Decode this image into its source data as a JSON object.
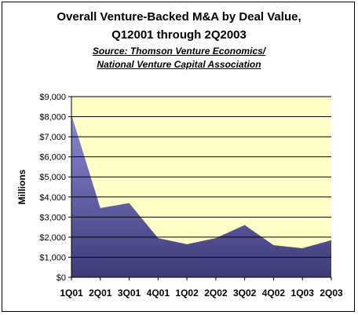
{
  "title_line1": "Overall Venture-Backed M&A by Deal Value,",
  "title_line2": "Q12001 through 2Q2003",
  "subtitle_line1": "Source: Thomson Venture Economics/",
  "subtitle_line2": "National Venture Capital Association",
  "colors": {
    "plot_background": "#ffffc6",
    "area_top": "#8b89d6",
    "area_bottom": "#3d3b77",
    "gridline": "#000000"
  },
  "chart_data": {
    "type": "area",
    "title": "Overall Venture-Backed M&A by Deal Value, Q12001 through 2Q2003",
    "subtitle": "Source: Thomson Venture Economics/ National Venture Capital Association",
    "xlabel": "",
    "ylabel": "Millions",
    "categories": [
      "1Q01",
      "2Q01",
      "3Q01",
      "4Q01",
      "1Q02",
      "2Q02",
      "3Q02",
      "4Q02",
      "1Q03",
      "2Q03"
    ],
    "series": [
      {
        "values": [
          8100,
          3450,
          3700,
          1950,
          1650,
          1950,
          2600,
          1600,
          1450,
          1850
        ]
      }
    ],
    "ylim": [
      0,
      9000
    ],
    "yticks": [
      0,
      1000,
      2000,
      3000,
      4000,
      5000,
      6000,
      7000,
      8000,
      9000
    ],
    "ytick_labels": [
      "$0",
      "$1,000",
      "$2,000",
      "$3,000",
      "$4,000",
      "$5,000",
      "$6,000",
      "$7,000",
      "$8,000",
      "$9,000"
    ],
    "grid": true,
    "legend": "none"
  }
}
